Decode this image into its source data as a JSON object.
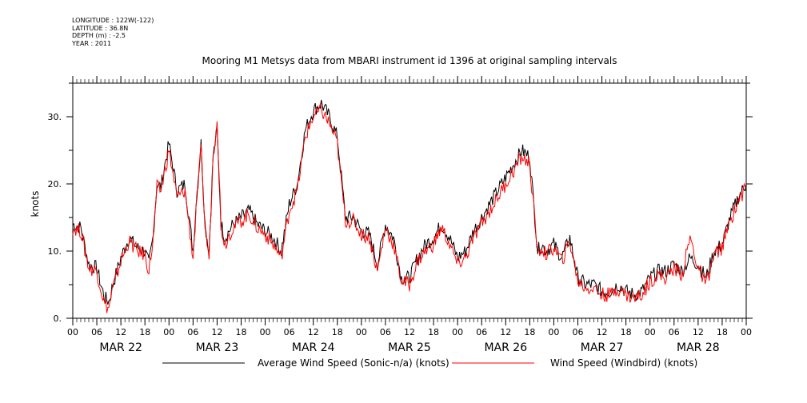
{
  "metadata": [
    "LONGITUDE : 122W(-122)",
    "LATITUDE : 36.8N",
    "DEPTH (m) : -2.5",
    "YEAR : 2011"
  ],
  "chart_data": {
    "type": "line",
    "title": "Mooring M1 Metsys data from MBARI instrument id 1396 at original sampling intervals",
    "ylabel": "knots",
    "xlabel": "",
    "ylim": [
      0,
      35
    ],
    "yticks": [
      0,
      10,
      20,
      30
    ],
    "ytick_labels": [
      "0.",
      "10.",
      "20.",
      "30."
    ],
    "xlim_hours": [
      0,
      168
    ],
    "hour_tick_labels": [
      "00",
      "06",
      "12",
      "18"
    ],
    "day_labels": [
      "MAR 22",
      "MAR 23",
      "MAR 24",
      "MAR 25",
      "MAR 26",
      "MAR 27",
      "MAR 28"
    ],
    "grid": false,
    "legend_position": "bottom",
    "series": [
      {
        "name": "Average Wind Speed (Sonic-n/a) (knots)",
        "color": "#000000",
        "x": [
          0,
          2,
          4,
          6,
          7,
          8,
          9,
          10,
          12,
          14,
          16,
          18,
          19,
          20,
          21,
          22,
          23,
          24,
          26,
          28,
          30,
          31,
          32,
          33,
          34,
          35,
          36,
          37,
          38,
          39,
          40,
          42,
          44,
          46,
          48,
          50,
          52,
          54,
          56,
          58,
          60,
          62,
          64,
          66,
          68,
          70,
          72,
          74,
          76,
          78,
          80,
          82,
          84,
          86,
          88,
          90,
          92,
          94,
          96,
          98,
          100,
          102,
          104,
          106,
          108,
          110,
          112,
          114,
          116,
          117,
          118,
          120,
          122,
          124,
          126,
          128,
          130,
          132,
          134,
          136,
          138,
          140,
          142,
          144,
          146,
          148,
          150,
          152,
          154,
          156,
          158,
          160,
          162,
          164,
          166,
          168
        ],
        "y": [
          14,
          13.5,
          8,
          7.5,
          5,
          3,
          2.5,
          5,
          9,
          12,
          10.5,
          10,
          8,
          12,
          20,
          19.5,
          23,
          26,
          19,
          20,
          10,
          19,
          26,
          14,
          10,
          24,
          28,
          14,
          12,
          13,
          14,
          15,
          16,
          14,
          13,
          12,
          10,
          17,
          20,
          28,
          31,
          32,
          30,
          27,
          15,
          15,
          13,
          12.5,
          8,
          14,
          12,
          6,
          6,
          9,
          11,
          12,
          14,
          12,
          9,
          10,
          13,
          15,
          17,
          19,
          21,
          23,
          25,
          24,
          10,
          11,
          10,
          11,
          9,
          12,
          6,
          5,
          5,
          4,
          4,
          5,
          4,
          3.5,
          4,
          6,
          7,
          7,
          8,
          7,
          9,
          8,
          6,
          10,
          11,
          15,
          18,
          20
        ]
      },
      {
        "name": "Wind Speed (Windbird) (knots)",
        "color": "#ff0000",
        "x": [
          0,
          2,
          4,
          6,
          7,
          8,
          9,
          10,
          12,
          14,
          16,
          18,
          19,
          20,
          21,
          22,
          23,
          24,
          26,
          28,
          30,
          31,
          32,
          33,
          34,
          35,
          36,
          37,
          38,
          39,
          40,
          42,
          44,
          46,
          48,
          50,
          52,
          54,
          56,
          58,
          60,
          62,
          64,
          66,
          68,
          70,
          72,
          74,
          76,
          78,
          80,
          82,
          84,
          86,
          88,
          90,
          92,
          94,
          96,
          98,
          100,
          102,
          104,
          106,
          108,
          110,
          112,
          114,
          116,
          117,
          118,
          120,
          122,
          124,
          126,
          128,
          130,
          132,
          134,
          136,
          138,
          140,
          142,
          144,
          146,
          148,
          150,
          152,
          154,
          156,
          158,
          160,
          162,
          164,
          166,
          168
        ],
        "y": [
          13.5,
          13,
          7.5,
          7,
          4.5,
          2,
          1.5,
          4.5,
          8.5,
          11.5,
          10,
          9.5,
          7,
          11.5,
          19.5,
          19,
          22,
          25,
          18,
          19,
          9,
          18,
          25,
          13.5,
          9,
          24,
          30,
          13.5,
          11,
          12.5,
          13.5,
          14.5,
          15.5,
          13.5,
          12.5,
          11,
          9,
          16,
          19,
          27,
          30,
          31,
          29,
          26,
          14.5,
          14.5,
          12.5,
          12,
          7,
          13.5,
          11,
          5.5,
          5,
          8.5,
          10,
          11,
          13.5,
          11,
          8,
          9,
          12,
          14,
          16,
          18,
          20,
          22,
          24,
          23,
          9.5,
          10.5,
          9.5,
          10.5,
          8.5,
          11.5,
          5.5,
          4.5,
          4.5,
          3.5,
          3.5,
          4.5,
          3.5,
          3,
          3.5,
          5.5,
          6.5,
          6,
          7.5,
          6.5,
          12,
          7.5,
          5,
          9.5,
          10.5,
          14.5,
          17.5,
          19.5
        ]
      }
    ]
  }
}
